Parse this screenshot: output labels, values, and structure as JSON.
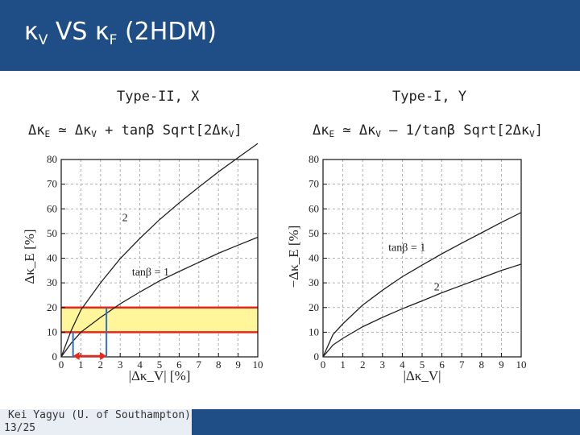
{
  "slide": {
    "title_kappa_v": "κ",
    "title_sub_v": "V",
    "title_vs": " VS ",
    "title_kappa_f": "κ",
    "title_sub_f": "F",
    "title_suffix": "  (2HDM)"
  },
  "left_panel": {
    "title": "Type-II, X",
    "formula": {
      "p1": "Δκ",
      "s1": "E",
      "p2": " ≃ Δκ",
      "s2": "V",
      "p3": " + tanβ Sqrt[2Δκ",
      "s3": "V",
      "p4": "]"
    }
  },
  "right_panel": {
    "title": "Type-I, Y",
    "formula": {
      "p1": "Δκ",
      "s1": "E",
      "p2": " ≃ Δκ",
      "s2": "V",
      "p3": " – 1/tanβ Sqrt[2Δκ",
      "s3": "V",
      "p4": "]"
    }
  },
  "footer": {
    "author": "Kei Yagyu (U. of Southampton)",
    "page": "13/25"
  },
  "colors": {
    "header": "#1f4e87",
    "band_fill": "#fff59a",
    "band_edge": "#e8261b",
    "blue_marker": "#2f72c4",
    "arrow": "#e8261b",
    "curve": "#222222"
  },
  "chart_data": [
    {
      "type": "line",
      "title": "",
      "xlabel": "|Δκ_V| [%]",
      "ylabel": "Δκ_E [%]",
      "xlim": [
        0,
        10
      ],
      "ylim": [
        0,
        80
      ],
      "xticks": [
        "0",
        "1",
        "2",
        "3",
        "4",
        "5",
        "6",
        "7",
        "8",
        "9",
        "10"
      ],
      "yticks": [
        "0",
        "10",
        "20",
        "30",
        "40",
        "50",
        "60",
        "70",
        "80"
      ],
      "grid": true,
      "series": [
        {
          "name": "2",
          "label_pos": [
            3.1,
            55
          ],
          "x": [
            0,
            0.5,
            1,
            2,
            3,
            4,
            5,
            6,
            7,
            8,
            9,
            10
          ],
          "y": [
            0,
            10.5,
            19.0,
            30.0,
            39.8,
            48.0,
            55.6,
            62.4,
            68.8,
            75.0,
            80.8,
            86.5
          ]
        },
        {
          "name": "tanβ = 1",
          "label_pos": [
            3.6,
            33
          ],
          "x": [
            0,
            0.5,
            1,
            2,
            3,
            4,
            5,
            6,
            7,
            8,
            9,
            10
          ],
          "y": [
            0,
            5.5,
            10.0,
            16.0,
            21.5,
            26.3,
            30.8,
            34.6,
            38.3,
            42.0,
            45.3,
            48.5
          ]
        }
      ],
      "highlight_band": {
        "y_min": 10,
        "y_max": 20
      },
      "markers_x": [
        0.6,
        2.3
      ],
      "arrow_x": [
        0.6,
        2.3
      ]
    },
    {
      "type": "line",
      "title": "",
      "xlabel": "|Δκ_V|",
      "ylabel": "−Δκ_E [%]",
      "xlim": [
        0,
        10
      ],
      "ylim": [
        0,
        80
      ],
      "xticks": [
        "0",
        "1",
        "2",
        "3",
        "4",
        "5",
        "6",
        "7",
        "8",
        "9",
        "10"
      ],
      "yticks": [
        "0",
        "10",
        "20",
        "30",
        "40",
        "50",
        "60",
        "70",
        "80"
      ],
      "grid": true,
      "series": [
        {
          "name": "tanβ = 1",
          "label_pos": [
            3.3,
            43
          ],
          "x": [
            0,
            0.5,
            1,
            2,
            3,
            4,
            5,
            6,
            7,
            8,
            9,
            10
          ],
          "y": [
            0,
            9.0,
            13.4,
            21.0,
            27.0,
            32.5,
            37.2,
            41.8,
            46.1,
            50.3,
            54.5,
            58.5
          ]
        },
        {
          "name": "2",
          "label_pos": [
            5.6,
            27
          ],
          "x": [
            0,
            0.5,
            1,
            2,
            3,
            4,
            5,
            6,
            7,
            8,
            9,
            10
          ],
          "y": [
            0,
            4.8,
            7.5,
            12.2,
            16.0,
            19.5,
            22.7,
            26.0,
            29.0,
            32.0,
            35.0,
            37.6
          ]
        }
      ]
    }
  ]
}
